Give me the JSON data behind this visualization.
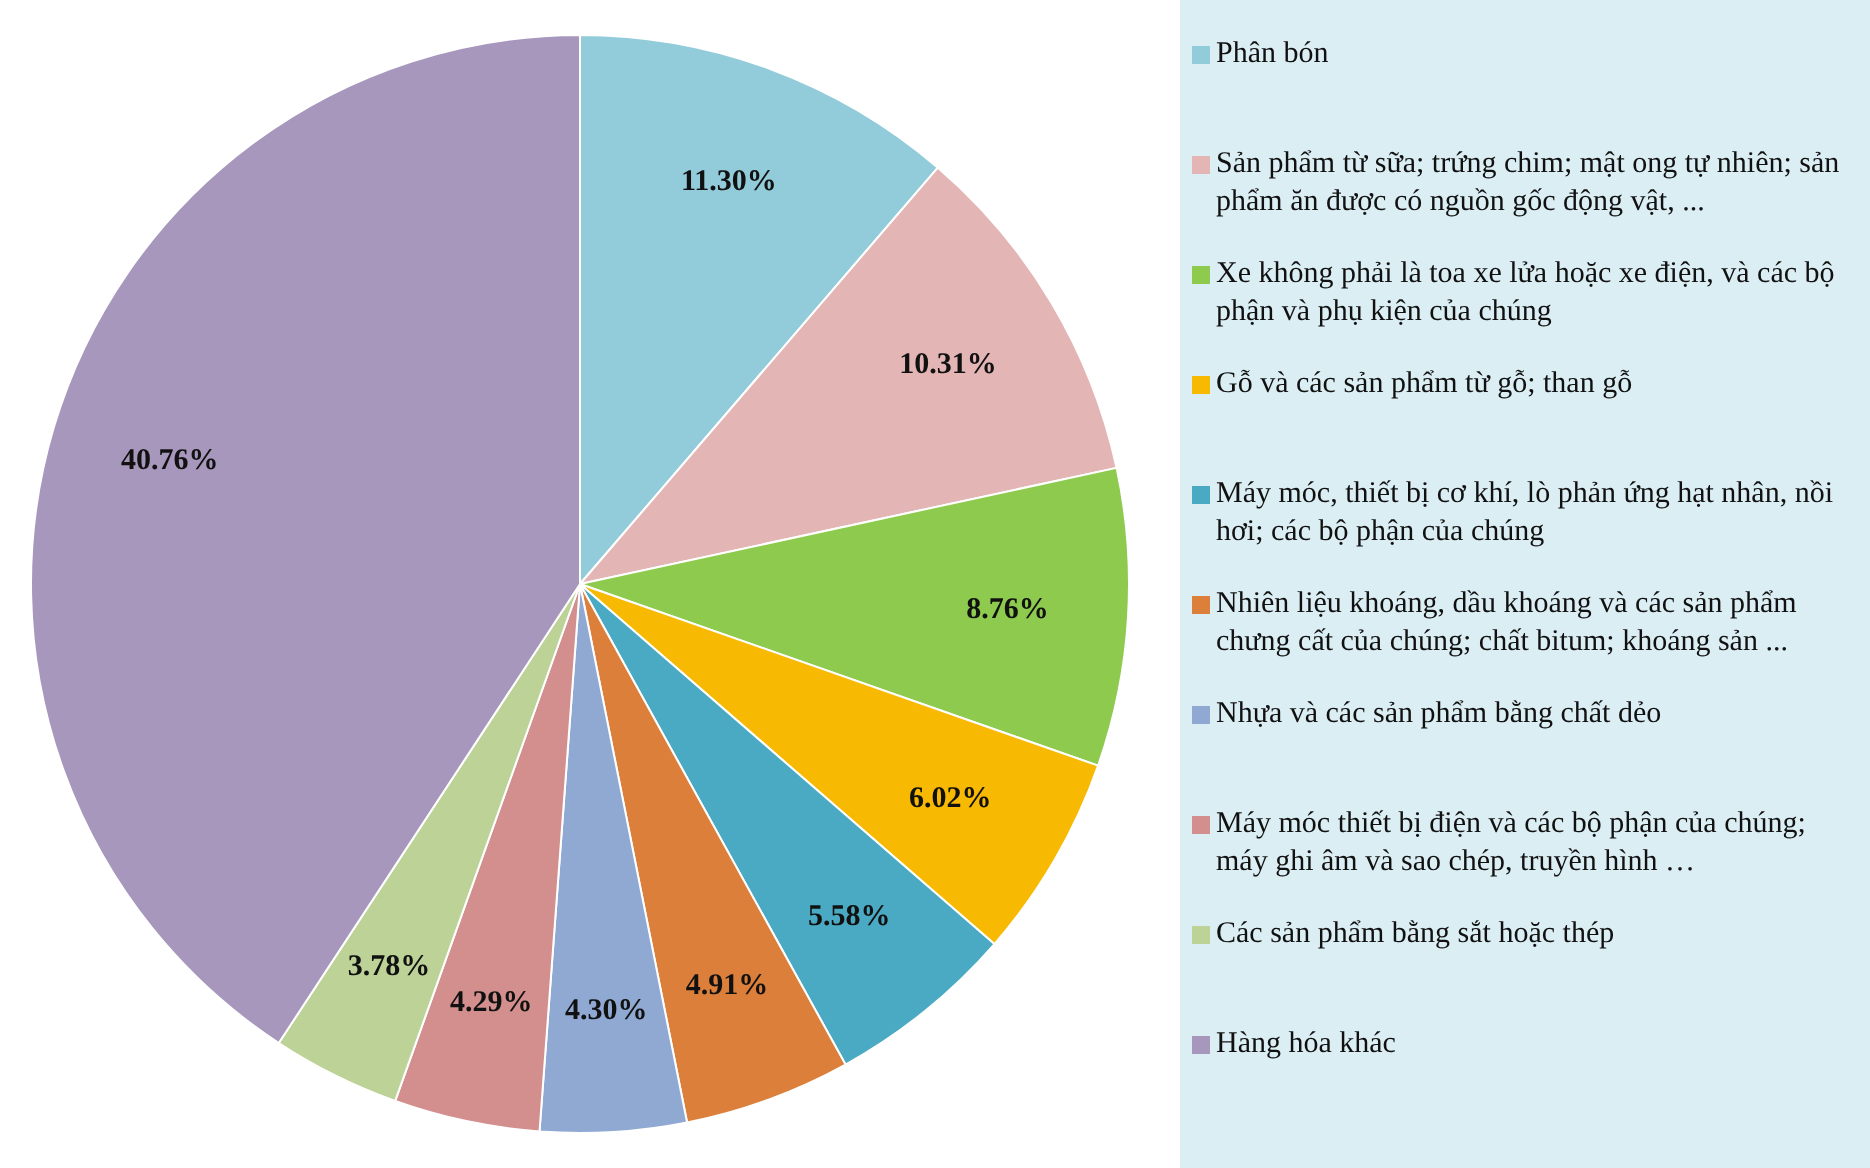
{
  "chart_data": {
    "type": "pie",
    "categories": [
      "Phân bón",
      "Sản phẩm từ sữa; trứng chim; mật ong tự nhiên; sản phẩm ăn được có nguồn gốc động vật, ...",
      "Xe không phải là toa xe lửa hoặc xe điện, và các bộ phận và phụ kiện của chúng",
      "Gỗ và các sản phẩm từ gỗ; than gỗ",
      "Máy móc, thiết bị cơ khí, lò phản ứng hạt nhân, nồi hơi; các bộ phận của chúng",
      "Nhiên liệu khoáng, dầu khoáng và các sản phẩm chưng cất của chúng; chất bitum; khoáng sản ...",
      "Nhựa và các sản phẩm bằng chất dẻo",
      "Máy móc thiết bị điện và các bộ phận của chúng; máy ghi âm và sao chép, truyền hình …",
      "Các sản phẩm bằng sắt hoặc thép",
      "Hàng hóa khác"
    ],
    "values": [
      11.3,
      10.31,
      8.76,
      6.02,
      5.58,
      4.91,
      4.3,
      4.29,
      3.78,
      40.76
    ],
    "value_labels": [
      "11.30%",
      "10.31%",
      "8.76%",
      "6.02%",
      "5.58%",
      "4.91%",
      "4.30%",
      "4.29%",
      "3.78%",
      "40.76%"
    ],
    "colors": [
      "#92cbd9",
      "#e3b6b5",
      "#8dca4d",
      "#f7b902",
      "#4aa9c3",
      "#db7f3b",
      "#8fa9d3",
      "#d28f8e",
      "#bcd297",
      "#a797bd"
    ],
    "legend": "right"
  }
}
